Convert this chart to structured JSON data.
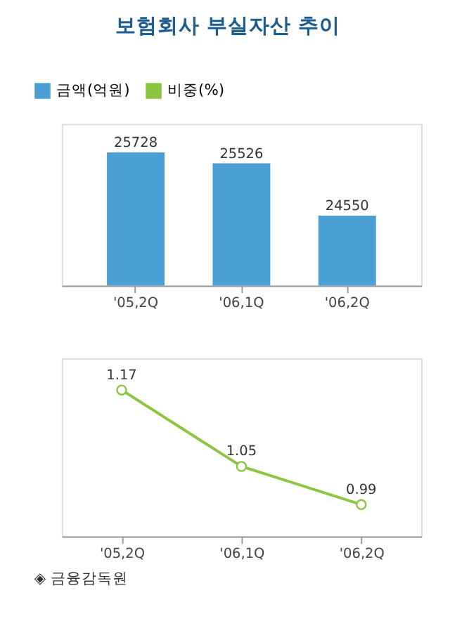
{
  "chart_data": [
    {
      "type": "bar",
      "title": "보험회사 부실자산 추이",
      "categories": [
        "'05,2Q",
        "'06,1Q",
        "'06,2Q"
      ],
      "series": [
        {
          "name": "금액(억원)",
          "color": "#4a9fd4",
          "values": [
            25728,
            25526,
            24550
          ]
        }
      ],
      "ylim": [
        23250,
        26260
      ],
      "tick_labels": "x",
      "data_labels": true,
      "legend": "top left",
      "grid": false
    },
    {
      "type": "line",
      "categories": [
        "'05,2Q",
        "'06,1Q",
        "'06,2Q"
      ],
      "series": [
        {
          "name": "비중(%)",
          "color": "#8cc63f",
          "values": [
            1.17,
            1.05,
            0.99
          ]
        }
      ],
      "ylim": [
        0.94,
        1.22
      ],
      "tick_labels": "x",
      "data_labels": true,
      "legend": "top left",
      "grid": false,
      "marker": "circle",
      "line_style": "solid",
      "annotations": [
        "◈ 금융감독원"
      ]
    }
  ]
}
